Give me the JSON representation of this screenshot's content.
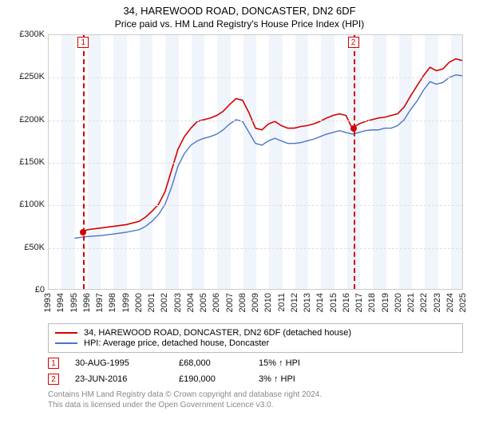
{
  "title": "34, HAREWOOD ROAD, DONCASTER, DN2 6DF",
  "subtitle": "Price paid vs. HM Land Registry's House Price Index (HPI)",
  "chart": {
    "type": "line",
    "ylabel_prefix": "£",
    "ylim": [
      0,
      300000
    ],
    "ytick_step": 50000,
    "yticks": [
      "£0",
      "£50K",
      "£100K",
      "£150K",
      "£200K",
      "£250K",
      "£300K"
    ],
    "x_start_year": 1993,
    "x_end_year": 2025,
    "background_color": "#ffffff",
    "band_color": "#f0f4fb",
    "grid_color": "#e0e0e0",
    "series": [
      {
        "key": "price_paid",
        "label": "34, HAREWOOD ROAD, DONCASTER, DN2 6DF (detached house)",
        "color": "#d40000",
        "line_width": 1.6,
        "points": [
          [
            1995.66,
            68000
          ],
          [
            1996,
            70000
          ],
          [
            1997,
            72000
          ],
          [
            1998,
            74000
          ],
          [
            1999,
            76000
          ],
          [
            2000,
            80000
          ],
          [
            2000.5,
            85000
          ],
          [
            2001,
            92000
          ],
          [
            2001.5,
            100000
          ],
          [
            2002,
            115000
          ],
          [
            2002.5,
            140000
          ],
          [
            2003,
            165000
          ],
          [
            2003.5,
            180000
          ],
          [
            2004,
            190000
          ],
          [
            2004.5,
            198000
          ],
          [
            2005,
            200000
          ],
          [
            2005.5,
            202000
          ],
          [
            2006,
            205000
          ],
          [
            2006.5,
            210000
          ],
          [
            2007,
            218000
          ],
          [
            2007.5,
            225000
          ],
          [
            2008,
            223000
          ],
          [
            2008.5,
            208000
          ],
          [
            2009,
            190000
          ],
          [
            2009.5,
            188000
          ],
          [
            2010,
            195000
          ],
          [
            2010.5,
            198000
          ],
          [
            2011,
            193000
          ],
          [
            2011.5,
            190000
          ],
          [
            2012,
            190000
          ],
          [
            2012.5,
            192000
          ],
          [
            2013,
            193000
          ],
          [
            2013.5,
            195000
          ],
          [
            2014,
            198000
          ],
          [
            2014.5,
            202000
          ],
          [
            2015,
            205000
          ],
          [
            2015.5,
            207000
          ],
          [
            2016,
            205000
          ],
          [
            2016.48,
            190000
          ],
          [
            2017,
            195000
          ],
          [
            2017.5,
            198000
          ],
          [
            2018,
            200000
          ],
          [
            2018.5,
            202000
          ],
          [
            2019,
            203000
          ],
          [
            2019.5,
            205000
          ],
          [
            2020,
            207000
          ],
          [
            2020.5,
            215000
          ],
          [
            2021,
            228000
          ],
          [
            2021.5,
            240000
          ],
          [
            2022,
            252000
          ],
          [
            2022.5,
            262000
          ],
          [
            2023,
            258000
          ],
          [
            2023.5,
            260000
          ],
          [
            2024,
            268000
          ],
          [
            2024.5,
            272000
          ],
          [
            2025,
            270000
          ]
        ]
      },
      {
        "key": "hpi",
        "label": "HPI: Average price, detached house, Doncaster",
        "color": "#4a74c9",
        "line_width": 1.4,
        "points": [
          [
            1995,
            60000
          ],
          [
            1996,
            62000
          ],
          [
            1997,
            63000
          ],
          [
            1998,
            65000
          ],
          [
            1999,
            67000
          ],
          [
            2000,
            70000
          ],
          [
            2000.5,
            74000
          ],
          [
            2001,
            80000
          ],
          [
            2001.5,
            88000
          ],
          [
            2002,
            100000
          ],
          [
            2002.5,
            120000
          ],
          [
            2003,
            145000
          ],
          [
            2003.5,
            160000
          ],
          [
            2004,
            170000
          ],
          [
            2004.5,
            175000
          ],
          [
            2005,
            178000
          ],
          [
            2005.5,
            180000
          ],
          [
            2006,
            183000
          ],
          [
            2006.5,
            188000
          ],
          [
            2007,
            195000
          ],
          [
            2007.5,
            200000
          ],
          [
            2008,
            198000
          ],
          [
            2008.5,
            185000
          ],
          [
            2009,
            172000
          ],
          [
            2009.5,
            170000
          ],
          [
            2010,
            175000
          ],
          [
            2010.5,
            178000
          ],
          [
            2011,
            175000
          ],
          [
            2011.5,
            172000
          ],
          [
            2012,
            172000
          ],
          [
            2012.5,
            173000
          ],
          [
            2013,
            175000
          ],
          [
            2013.5,
            177000
          ],
          [
            2014,
            180000
          ],
          [
            2014.5,
            183000
          ],
          [
            2015,
            185000
          ],
          [
            2015.5,
            187000
          ],
          [
            2016,
            185000
          ],
          [
            2016.5,
            183000
          ],
          [
            2017,
            185000
          ],
          [
            2017.5,
            187000
          ],
          [
            2018,
            188000
          ],
          [
            2018.5,
            188000
          ],
          [
            2019,
            190000
          ],
          [
            2019.5,
            190000
          ],
          [
            2020,
            193000
          ],
          [
            2020.5,
            200000
          ],
          [
            2021,
            212000
          ],
          [
            2021.5,
            222000
          ],
          [
            2022,
            235000
          ],
          [
            2022.5,
            245000
          ],
          [
            2023,
            242000
          ],
          [
            2023.5,
            244000
          ],
          [
            2024,
            250000
          ],
          [
            2024.5,
            253000
          ],
          [
            2025,
            252000
          ]
        ]
      }
    ],
    "sale_markers": [
      {
        "n": "1",
        "year": 1995.66,
        "value": 68000,
        "color": "#d40000"
      },
      {
        "n": "2",
        "year": 2016.48,
        "value": 190000,
        "color": "#d40000"
      }
    ]
  },
  "legend": {
    "items": [
      {
        "color": "#d40000",
        "label": "34, HAREWOOD ROAD, DONCASTER, DN2 6DF (detached house)"
      },
      {
        "color": "#4a74c9",
        "label": "HPI: Average price, detached house, Doncaster"
      }
    ]
  },
  "sales": [
    {
      "n": "1",
      "color": "#d40000",
      "date": "30-AUG-1995",
      "price": "£68,000",
      "hpi": "15% ↑ HPI"
    },
    {
      "n": "2",
      "color": "#d40000",
      "date": "23-JUN-2016",
      "price": "£190,000",
      "hpi": "3% ↑ HPI"
    }
  ],
  "footer": {
    "line1": "Contains HM Land Registry data © Crown copyright and database right 2024.",
    "line2": "This data is licensed under the Open Government Licence v3.0."
  }
}
